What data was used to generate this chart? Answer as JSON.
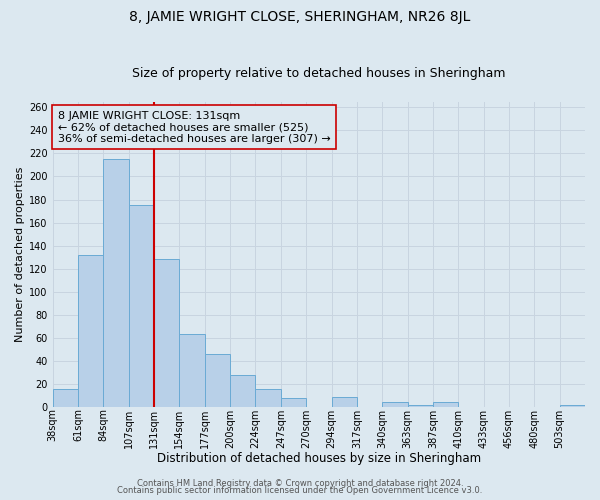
{
  "title": "8, JAMIE WRIGHT CLOSE, SHERINGHAM, NR26 8JL",
  "subtitle": "Size of property relative to detached houses in Sheringham",
  "xlabel": "Distribution of detached houses by size in Sheringham",
  "ylabel": "Number of detached properties",
  "bin_labels": [
    "38sqm",
    "61sqm",
    "84sqm",
    "107sqm",
    "131sqm",
    "154sqm",
    "177sqm",
    "200sqm",
    "224sqm",
    "247sqm",
    "270sqm",
    "294sqm",
    "317sqm",
    "340sqm",
    "363sqm",
    "387sqm",
    "410sqm",
    "433sqm",
    "456sqm",
    "480sqm",
    "503sqm"
  ],
  "bar_heights": [
    16,
    132,
    215,
    175,
    128,
    63,
    46,
    28,
    16,
    8,
    0,
    9,
    0,
    4,
    2,
    4,
    0,
    0,
    0,
    0,
    2
  ],
  "bar_color": "#b8d0e8",
  "bar_edgecolor": "#6aaad4",
  "vline_x": 4,
  "vline_color": "#cc0000",
  "annotation_lines": [
    "8 JAMIE WRIGHT CLOSE: 131sqm",
    "← 62% of detached houses are smaller (525)",
    "36% of semi-detached houses are larger (307) →"
  ],
  "annotation_box_edgecolor": "#cc0000",
  "ylim": [
    0,
    265
  ],
  "yticks": [
    0,
    20,
    40,
    60,
    80,
    100,
    120,
    140,
    160,
    180,
    200,
    220,
    240,
    260
  ],
  "grid_color": "#c8d4e0",
  "bg_color": "#dce8f0",
  "footer_lines": [
    "Contains HM Land Registry data © Crown copyright and database right 2024.",
    "Contains public sector information licensed under the Open Government Licence v3.0."
  ],
  "title_fontsize": 10,
  "subtitle_fontsize": 9,
  "xlabel_fontsize": 8.5,
  "ylabel_fontsize": 8,
  "tick_fontsize": 7,
  "annotation_fontsize": 8,
  "footer_fontsize": 6
}
